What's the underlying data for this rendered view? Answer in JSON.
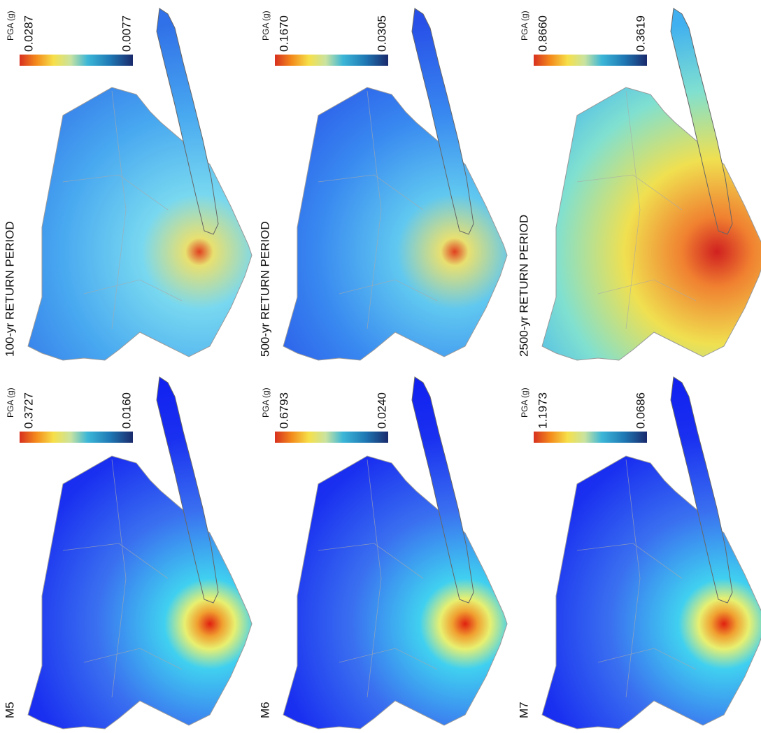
{
  "panels": [
    {
      "label": "100-yr RETURN PERIOD",
      "colorbar": {
        "title": "PGA (g)",
        "max": "0.0287",
        "min": "0.0077"
      }
    },
    {
      "label": "500-yr RETURN PERIOD",
      "colorbar": {
        "title": "PGA (g)",
        "max": "0.1670",
        "min": "0.0305"
      }
    },
    {
      "label": "2500-yr RETURN PERIOD",
      "colorbar": {
        "title": "PGA (g)",
        "max": "0.8660",
        "min": "0.3619"
      }
    },
    {
      "label": "M5",
      "colorbar": {
        "title": "PGA (g)",
        "max": "0.3727",
        "min": "0.0160"
      }
    },
    {
      "label": "M6",
      "colorbar": {
        "title": "PGA (g)",
        "max": "0.6793",
        "min": "0.0240"
      }
    },
    {
      "label": "M7",
      "colorbar": {
        "title": "PGA (g)",
        "max": "1.1973",
        "min": "0.0686"
      }
    }
  ]
}
